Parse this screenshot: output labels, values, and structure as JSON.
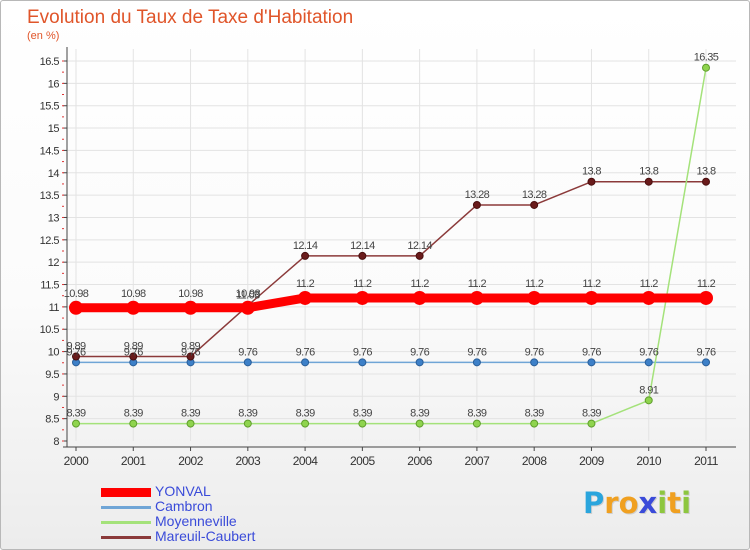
{
  "title": "Evolution du Taux de Taxe d'Habitation",
  "subtitle": "(en %)",
  "logo": {
    "text": "Proxiti",
    "letters": [
      {
        "ch": "P",
        "color": "#2aa5dd"
      },
      {
        "ch": "r",
        "color": "#f0a020"
      },
      {
        "ch": "o",
        "color": "#f0a020"
      },
      {
        "ch": "x",
        "color": "#3a4bd9"
      },
      {
        "ch": "i",
        "color": "#8dc63f"
      },
      {
        "ch": "t",
        "color": "#f0a020"
      },
      {
        "ch": "i",
        "color": "#8dc63f"
      }
    ]
  },
  "chart_data": {
    "type": "line",
    "title": "Evolution du Taux de Taxe d'Habitation",
    "ylabel": "(en %)",
    "xlabel": "",
    "x": [
      "2000",
      "2001",
      "2002",
      "2003",
      "2004",
      "2005",
      "2006",
      "2007",
      "2008",
      "2009",
      "2010",
      "2011"
    ],
    "ylim": [
      8,
      16.5
    ],
    "yticks": [
      "8",
      "8.5",
      "9",
      "9.5",
      "10",
      "10.5",
      "11",
      "11.5",
      "12",
      "12.5",
      "13",
      "13.5",
      "14",
      "14.5",
      "15",
      "15.5",
      "16",
      "16.5"
    ],
    "grid": true,
    "legend_position": "bottom-left",
    "series": [
      {
        "name": "YONVAL",
        "color": "#ff0000",
        "values": [
          10.98,
          10.98,
          10.98,
          10.98,
          11.2,
          11.2,
          11.2,
          11.2,
          11.2,
          11.2,
          11.2,
          11.2
        ],
        "labels": [
          "10.98",
          "10.98",
          "10.98",
          "10.98",
          "11.2",
          "11.2",
          "11.2",
          "11.2",
          "11.2",
          "11.2",
          "11.2",
          "11.2"
        ]
      },
      {
        "name": "Cambron",
        "color": "#6fa5d6",
        "values": [
          9.76,
          9.76,
          9.76,
          9.76,
          9.76,
          9.76,
          9.76,
          9.76,
          9.76,
          9.76,
          9.76,
          9.76
        ],
        "labels": [
          "9.76",
          "9.76",
          "9.76",
          "9.76",
          "9.76",
          "9.76",
          "9.76",
          "9.76",
          "9.76",
          "9.76",
          "9.76",
          "9.76"
        ]
      },
      {
        "name": "Moyenneville",
        "color": "#a4e27a",
        "values": [
          8.39,
          8.39,
          8.39,
          8.39,
          8.39,
          8.39,
          8.39,
          8.39,
          8.39,
          8.39,
          8.91,
          16.35
        ],
        "labels": [
          "8.39",
          "8.39",
          "8.39",
          "8.39",
          "8.39",
          "8.39",
          "8.39",
          "8.39",
          "8.39",
          "8.39",
          "8.91",
          "16.35"
        ]
      },
      {
        "name": "Mareuil-Caubert",
        "color": "#8b3a3a",
        "values": [
          9.89,
          9.89,
          9.89,
          11.03,
          12.14,
          12.14,
          12.14,
          13.28,
          13.28,
          13.8,
          13.8,
          13.8
        ],
        "labels": [
          "9.89",
          "9.89",
          "9.89",
          "11.03",
          "12.14",
          "12.14",
          "12.14",
          "13.28",
          "13.28",
          "13.8",
          "13.8",
          "13.8"
        ]
      }
    ]
  }
}
